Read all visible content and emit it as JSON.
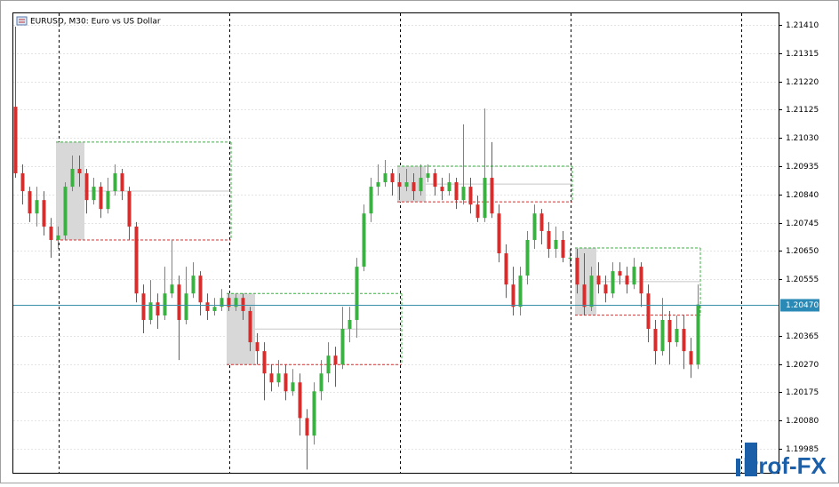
{
  "chart_data": {
    "type": "candlestick",
    "title": "EURUSD, M30:  Euro vs US Dollar",
    "watermark": "Prof-FX",
    "up_color": "#3cb043",
    "down_color": "#d32f2f",
    "grid": true,
    "ylim": [
      1.19904,
      1.21452
    ],
    "yticks": [
      {
        "value": 1.2141,
        "label": "1.21410"
      },
      {
        "value": 1.21315,
        "label": "1.21315"
      },
      {
        "value": 1.2122,
        "label": "1.21220"
      },
      {
        "value": 1.21125,
        "label": "1.21125"
      },
      {
        "value": 1.2103,
        "label": "1.21030"
      },
      {
        "value": 1.20935,
        "label": "1.20935"
      },
      {
        "value": 1.2084,
        "label": "1.20840"
      },
      {
        "value": 1.20745,
        "label": "1.20745"
      },
      {
        "value": 1.2065,
        "label": "1.20650"
      },
      {
        "value": 1.20555,
        "label": "1.20555"
      },
      {
        "value": 1.20365,
        "label": "1.20365"
      },
      {
        "value": 1.2027,
        "label": "1.20270"
      },
      {
        "value": 1.20175,
        "label": "1.20175"
      },
      {
        "value": 1.2008,
        "label": "1.20080"
      },
      {
        "value": 1.19985,
        "label": "1.19985"
      }
    ],
    "last_price": {
      "value": 1.2047,
      "label": "1.20470"
    },
    "ranges": [
      {
        "high": 1.21016,
        "low": 1.20687,
        "from": 6,
        "box_end": 10,
        "to": 30
      },
      {
        "high": 1.20507,
        "low": 1.20268,
        "from": 30,
        "box_end": 34,
        "to": 54
      },
      {
        "high": 1.20935,
        "low": 1.20815,
        "from": 54,
        "box_end": 58,
        "to": 78
      },
      {
        "high": 1.2066,
        "low": 1.20434,
        "from": 79,
        "box_end": 82,
        "to": 96
      }
    ],
    "ohlc": [
      [
        1.21135,
        1.21404,
        1.20896,
        1.20911
      ],
      [
        1.20911,
        1.20941,
        1.20806,
        1.20851
      ],
      [
        1.20851,
        1.20866,
        1.20747,
        1.20776
      ],
      [
        1.20776,
        1.20866,
        1.20732,
        1.20821
      ],
      [
        1.20821,
        1.20851,
        1.20702,
        1.20732
      ],
      [
        1.20732,
        1.20761,
        1.20627,
        1.20687
      ],
      [
        1.20687,
        1.20732,
        1.20657,
        1.20702
      ],
      [
        1.20702,
        1.20881,
        1.20687,
        1.20866
      ],
      [
        1.20866,
        1.20971,
        1.20851,
        1.20926
      ],
      [
        1.20926,
        1.20971,
        1.20866,
        1.20911
      ],
      [
        1.20911,
        1.20926,
        1.20776,
        1.20821
      ],
      [
        1.20821,
        1.20896,
        1.20806,
        1.20866
      ],
      [
        1.20866,
        1.20881,
        1.20761,
        1.20791
      ],
      [
        1.20791,
        1.20896,
        1.20776,
        1.20851
      ],
      [
        1.20851,
        1.20941,
        1.20836,
        1.20911
      ],
      [
        1.20911,
        1.20926,
        1.20821,
        1.20851
      ],
      [
        1.20851,
        1.20866,
        1.20687,
        1.20732
      ],
      [
        1.20732,
        1.20747,
        1.20477,
        1.20507
      ],
      [
        1.20507,
        1.20537,
        1.20373,
        1.20418
      ],
      [
        1.20418,
        1.20552,
        1.20403,
        1.20477
      ],
      [
        1.20477,
        1.20507,
        1.20388,
        1.20433
      ],
      [
        1.20433,
        1.20597,
        1.20418,
        1.20507
      ],
      [
        1.20507,
        1.20687,
        1.20492,
        1.20537
      ],
      [
        1.20537,
        1.20567,
        1.20283,
        1.20418
      ],
      [
        1.20418,
        1.20597,
        1.20403,
        1.20507
      ],
      [
        1.20507,
        1.20612,
        1.20492,
        1.20567
      ],
      [
        1.20567,
        1.20582,
        1.20433,
        1.20477
      ],
      [
        1.20477,
        1.20507,
        1.20418,
        1.20448
      ],
      [
        1.20448,
        1.20492,
        1.20433,
        1.20462
      ],
      [
        1.20462,
        1.20522,
        1.20448,
        1.20492
      ],
      [
        1.20492,
        1.20507,
        1.20448,
        1.20462
      ],
      [
        1.20462,
        1.20507,
        1.20448,
        1.20492
      ],
      [
        1.20492,
        1.20507,
        1.20418,
        1.20448
      ],
      [
        1.20448,
        1.20462,
        1.20313,
        1.20343
      ],
      [
        1.20343,
        1.20373,
        1.20268,
        1.20313
      ],
      [
        1.20313,
        1.20343,
        1.20148,
        1.20238
      ],
      [
        1.20238,
        1.20268,
        1.20178,
        1.20208
      ],
      [
        1.20208,
        1.20283,
        1.20193,
        1.20238
      ],
      [
        1.20238,
        1.20268,
        1.20148,
        1.20178
      ],
      [
        1.20178,
        1.20253,
        1.20163,
        1.20208
      ],
      [
        1.20208,
        1.20238,
        1.20029,
        1.20088
      ],
      [
        1.20088,
        1.20118,
        1.19915,
        1.20029
      ],
      [
        1.20029,
        1.20208,
        1.19999,
        1.20178
      ],
      [
        1.20178,
        1.20283,
        1.20148,
        1.20238
      ],
      [
        1.20238,
        1.20343,
        1.20208,
        1.20298
      ],
      [
        1.20298,
        1.20328,
        1.20193,
        1.20268
      ],
      [
        1.20268,
        1.20462,
        1.20253,
        1.20388
      ],
      [
        1.20388,
        1.20462,
        1.20343,
        1.20418
      ],
      [
        1.20418,
        1.20627,
        1.20358,
        1.20597
      ],
      [
        1.20597,
        1.20806,
        1.20582,
        1.20776
      ],
      [
        1.20776,
        1.20896,
        1.20747,
        1.20866
      ],
      [
        1.20866,
        1.20941,
        1.20836,
        1.20881
      ],
      [
        1.20881,
        1.20956,
        1.20866,
        1.20911
      ],
      [
        1.20911,
        1.20926,
        1.20836,
        1.20881
      ],
      [
        1.20881,
        1.20911,
        1.20821,
        1.20866
      ],
      [
        1.20866,
        1.20926,
        1.20851,
        1.20881
      ],
      [
        1.20881,
        1.20911,
        1.20821,
        1.20851
      ],
      [
        1.20851,
        1.20941,
        1.20836,
        1.20896
      ],
      [
        1.20896,
        1.20941,
        1.20881,
        1.20911
      ],
      [
        1.20911,
        1.20926,
        1.20836,
        1.20866
      ],
      [
        1.20866,
        1.20896,
        1.20821,
        1.20851
      ],
      [
        1.20851,
        1.20911,
        1.20836,
        1.20881
      ],
      [
        1.20881,
        1.20896,
        1.20791,
        1.20821
      ],
      [
        1.20821,
        1.21076,
        1.20806,
        1.20866
      ],
      [
        1.20866,
        1.20896,
        1.20776,
        1.20806
      ],
      [
        1.20806,
        1.20836,
        1.20747,
        1.20761
      ],
      [
        1.20761,
        1.21129,
        1.20747,
        1.20896
      ],
      [
        1.20896,
        1.21016,
        1.20761,
        1.20776
      ],
      [
        1.20776,
        1.20806,
        1.20612,
        1.20642
      ],
      [
        1.20642,
        1.20672,
        1.20492,
        1.20537
      ],
      [
        1.20537,
        1.20597,
        1.20433,
        1.20462
      ],
      [
        1.20462,
        1.20597,
        1.20433,
        1.20567
      ],
      [
        1.20567,
        1.20717,
        1.20537,
        1.20687
      ],
      [
        1.20687,
        1.20806,
        1.20657,
        1.20776
      ],
      [
        1.20776,
        1.20791,
        1.20672,
        1.20717
      ],
      [
        1.20717,
        1.20747,
        1.20627,
        1.20657
      ],
      [
        1.20657,
        1.20732,
        1.20627,
        1.20687
      ],
      [
        1.20687,
        1.20717,
        1.20612,
        1.20627
      ],
      [
        1.20627,
        1.20657,
        1.20597,
        1.20627
      ],
      [
        1.20627,
        1.20657,
        1.20507,
        1.20537
      ],
      [
        1.20537,
        1.20642,
        1.20433,
        1.20462
      ],
      [
        1.20462,
        1.20597,
        1.20448,
        1.20567
      ],
      [
        1.20567,
        1.20612,
        1.20507,
        1.20537
      ],
      [
        1.20537,
        1.20567,
        1.20477,
        1.20507
      ],
      [
        1.20507,
        1.20612,
        1.20492,
        1.20582
      ],
      [
        1.20582,
        1.20612,
        1.20537,
        1.20567
      ],
      [
        1.20567,
        1.20597,
        1.20507,
        1.20537
      ],
      [
        1.20537,
        1.20627,
        1.20522,
        1.20597
      ],
      [
        1.20597,
        1.20612,
        1.20462,
        1.20507
      ],
      [
        1.20507,
        1.20537,
        1.20343,
        1.20388
      ],
      [
        1.20388,
        1.20418,
        1.20268,
        1.20313
      ],
      [
        1.20313,
        1.20492,
        1.20298,
        1.20418
      ],
      [
        1.20418,
        1.20448,
        1.20268,
        1.20343
      ],
      [
        1.20343,
        1.20433,
        1.20328,
        1.20388
      ],
      [
        1.20388,
        1.20433,
        1.20253,
        1.20313
      ],
      [
        1.20313,
        1.20358,
        1.20223,
        1.20268
      ],
      [
        1.20268,
        1.20537,
        1.20253,
        1.2047
      ]
    ]
  }
}
